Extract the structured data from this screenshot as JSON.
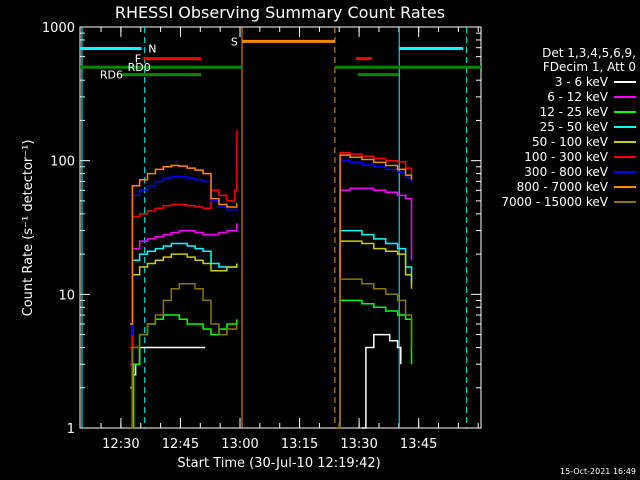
{
  "chart_data": {
    "type": "line",
    "title": "RHESSI Observing Summary Count Rates",
    "xlabel": "Start Time (30-Jul-10 12:19:42)",
    "ylabel": "Count Rate (s⁻¹ detector⁻¹)",
    "yscale": "log",
    "ylim": [
      1,
      1000
    ],
    "xlim_minutes": [
      0,
      101
    ],
    "x_ticks": [
      {
        "label": "12:30",
        "minute": 10.3
      },
      {
        "label": "12:45",
        "minute": 25.3
      },
      {
        "label": "13:00",
        "minute": 40.3
      },
      {
        "label": "13:15",
        "minute": 55.3
      },
      {
        "label": "13:30",
        "minute": 70.3
      },
      {
        "label": "13:45",
        "minute": 85.3
      }
    ],
    "y_ticks": [
      {
        "label": "1",
        "value": 1
      },
      {
        "label": "10",
        "value": 10
      },
      {
        "label": "100",
        "value": 100
      },
      {
        "label": "1000",
        "value": 1000
      }
    ],
    "legend_header": [
      "Det 1,3,4,5,6,9,",
      "FDecim 1, Att 0"
    ],
    "series": [
      {
        "name": "3 - 6 keV",
        "color": "#ffffff",
        "segments": [
          {
            "x": [
              12.6,
              13.2,
              14,
              15,
              17,
              19,
              21,
              23,
              25,
              27,
              29,
              30,
              31,
              31.5
            ],
            "y": [
              1,
              2.5,
              3,
              4,
              4,
              4,
              4,
              4,
              4,
              4,
              4,
              4,
              4,
              4
            ]
          },
          {
            "x": [
              71,
              72,
              74,
              76,
              78,
              80,
              80.8
            ],
            "y": [
              1,
              4,
              5,
              5,
              4.5,
              4,
              3
            ]
          }
        ]
      },
      {
        "name": "6 - 12 keV",
        "color": "#ff00ff",
        "segments": [
          {
            "x": [
              12.6,
              13.2,
              15,
              17,
              19,
              21,
              23,
              25,
              27,
              29,
              31,
              33,
              35,
              37,
              39.5
            ],
            "y": [
              3,
              22,
              25,
              26,
              27,
              28,
              29,
              30,
              30,
              29,
              28,
              28,
              29,
              30,
              34
            ]
          },
          {
            "x": [
              64.5,
              65.5,
              68,
              71,
              74,
              77,
              80,
              82,
              83.5
            ],
            "y": [
              1,
              60,
              62,
              62,
              60,
              58,
              55,
              52,
              18
            ]
          }
        ]
      },
      {
        "name": "12 - 25 keV",
        "color": "#00ff00",
        "segments": [
          {
            "x": [
              12.6,
              13.5,
              15,
              17,
              19,
              21,
              23,
              25,
              27,
              29,
              31,
              33,
              35,
              37,
              39.5
            ],
            "y": [
              1,
              3,
              5,
              6,
              6.5,
              7,
              7,
              6.5,
              6,
              6,
              5.5,
              5,
              5.5,
              6,
              6.5
            ]
          },
          {
            "x": [
              64.5,
              65.5,
              68,
              71,
              74,
              77,
              80,
              82,
              83.5
            ],
            "y": [
              1,
              9,
              9,
              8.5,
              8,
              7.5,
              7,
              6.5,
              3
            ]
          }
        ]
      },
      {
        "name": "25 - 50 keV",
        "color": "#00ffff",
        "segments": [
          {
            "x": [
              12.6,
              13.2,
              15,
              17,
              19,
              21,
              23,
              25,
              27,
              29,
              31,
              33,
              35,
              37,
              39.5
            ],
            "y": [
              2,
              18,
              20,
              21,
              22,
              23,
              24,
              24,
              23,
              22,
              21,
              17,
              16,
              16,
              17
            ]
          },
          {
            "x": [
              64.5,
              65.5,
              68,
              71,
              74,
              77,
              80,
              82,
              83.5
            ],
            "y": [
              1,
              30,
              30,
              28,
              26,
              24,
              22,
              16,
              12
            ]
          }
        ]
      },
      {
        "name": "50 - 100 keV",
        "color": "#cccc00",
        "segments": [
          {
            "x": [
              12.6,
              13.2,
              15,
              17,
              19,
              21,
              23,
              25,
              27,
              29,
              31,
              33,
              35,
              37,
              39.5
            ],
            "y": [
              2,
              14,
              16,
              17,
              18,
              19,
              20,
              20,
              19,
              18,
              17,
              15,
              15,
              16,
              17
            ]
          },
          {
            "x": [
              64.5,
              65.5,
              68,
              71,
              74,
              77,
              80,
              82,
              83.5
            ],
            "y": [
              1,
              25,
              25,
              24,
              22,
              21,
              20,
              14,
              11
            ]
          }
        ]
      },
      {
        "name": "100 - 300 keV",
        "color": "#ff0000",
        "segments": [
          {
            "x": [
              12.6,
              13.2,
              15,
              17,
              19,
              21,
              23,
              25,
              27,
              29,
              31,
              33,
              35,
              37,
              39,
              39.5
            ],
            "y": [
              4,
              38,
              40,
              42,
              44,
              46,
              47,
              47,
              46,
              45,
              44,
              60,
              55,
              50,
              60,
              170
            ]
          },
          {
            "x": [
              64.5,
              65.5,
              68,
              71,
              74,
              77,
              80,
              82,
              83.5
            ],
            "y": [
              1,
              115,
              112,
              108,
              104,
              100,
              98,
              88,
              80
            ]
          }
        ]
      },
      {
        "name": "300 - 800 keV",
        "color": "#0000ff",
        "segments": [
          {
            "x": [
              12.6,
              13.2,
              15,
              17,
              19,
              21,
              23,
              25,
              27,
              29,
              31,
              33,
              35,
              37,
              39.5
            ],
            "y": [
              5,
              55,
              60,
              65,
              70,
              74,
              76,
              76,
              74,
              72,
              70,
              50,
              45,
              43,
              45
            ]
          },
          {
            "x": [
              64.5,
              65.5,
              68,
              71,
              74,
              77,
              80,
              82,
              83.5
            ],
            "y": [
              1,
              100,
              97,
              93,
              90,
              86,
              82,
              75,
              70
            ]
          }
        ]
      },
      {
        "name": "800 - 7000 keV",
        "color": "#ff8800",
        "segments": [
          {
            "x": [
              12.6,
              13.2,
              15,
              17,
              19,
              21,
              23,
              25,
              27,
              29,
              31,
              33,
              35,
              37,
              39.5
            ],
            "y": [
              6,
              65,
              72,
              80,
              86,
              90,
              92,
              91,
              88,
              85,
              80,
              52,
              47,
              45,
              48
            ]
          },
          {
            "x": [
              64.5,
              65.5,
              68,
              71,
              74,
              77,
              80,
              82,
              83.5
            ],
            "y": [
              1,
              110,
              106,
              102,
              97,
              92,
              86,
              78,
              72
            ]
          }
        ]
      },
      {
        "name": "7000 - 15000 keV",
        "color": "#887700",
        "segments": [
          {
            "x": [
              12.6,
              13.2,
              15,
              17,
              19,
              21,
              23,
              25,
              27,
              29,
              31,
              33,
              35,
              37,
              39.5
            ],
            "y": [
              1,
              4,
              5,
              6,
              7,
              9,
              11,
              12,
              12,
              11,
              9,
              6,
              5,
              5.5,
              6
            ]
          },
          {
            "x": [
              64.5,
              65.5,
              68,
              71,
              74,
              77,
              80,
              82,
              83.5
            ],
            "y": [
              1,
              13,
              13,
              12,
              11,
              10,
              9,
              7,
              4
            ]
          }
        ]
      }
    ],
    "vertical_lines": [
      {
        "minute": 0.5,
        "color": "#00ffff",
        "style": "solid"
      },
      {
        "minute": 16.3,
        "color": "#00ffff",
        "style": "dashed"
      },
      {
        "minute": 40.8,
        "color": "#ff8800",
        "style": "solid"
      },
      {
        "minute": 64.2,
        "color": "#ff8800",
        "style": "dashed"
      },
      {
        "minute": 80.4,
        "color": "#00ffff",
        "style": "solid"
      },
      {
        "minute": 97.4,
        "color": "#00ffff",
        "style": "dashed"
      }
    ],
    "flag_bars": [
      {
        "label": "N",
        "color": "#00ffff",
        "value": 690,
        "from": 0,
        "to": 15.5,
        "labelMinute": 17.2
      },
      {
        "label": "N",
        "color": "#00ffff",
        "value": 690,
        "from": 80.5,
        "to": 96.5,
        "labelMinute": null
      },
      {
        "label": "S",
        "color": "#ff8800",
        "value": 780,
        "from": 40.8,
        "to": 64.2,
        "labelMinute": 38.0
      },
      {
        "label": "F",
        "color": "#ff0000",
        "value": 580,
        "from": 16.0,
        "to": 30.5,
        "labelMinute": 13.8
      },
      {
        "label": "F",
        "color": "#ff0000",
        "value": 580,
        "from": 69.5,
        "to": 73.5,
        "labelMinute": null
      },
      {
        "label": "RD0",
        "color": "#008800",
        "value": 500,
        "from": 0,
        "to": 40.8,
        "labelMinute": 12.0
      },
      {
        "label": "RD0",
        "color": "#008800",
        "value": 500,
        "from": 64.2,
        "to": 101,
        "labelMinute": null
      },
      {
        "label": "RD6",
        "color": "#008800",
        "value": 440,
        "from": 10.6,
        "to": 30.5,
        "labelMinute": 5.0
      },
      {
        "label": "RD6",
        "color": "#008800",
        "value": 440,
        "from": 70.0,
        "to": 80.3,
        "labelMinute": null
      }
    ]
  },
  "footer": {
    "stamp": "15-Oct-2021 16:49"
  }
}
